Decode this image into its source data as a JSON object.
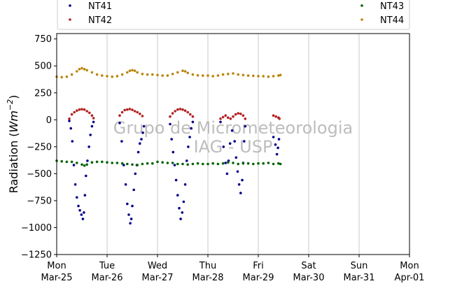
{
  "chart_data": {
    "type": "scatter",
    "title": "",
    "xlabel": "",
    "ylabel": "Radiation (Wm^-2)",
    "ylabel_parts": {
      "base": "Radiation (",
      "var": "Wm",
      "exp": "−2",
      "close": ")"
    },
    "ylim": [
      -1250,
      800
    ],
    "yticks": [
      -1250,
      -1000,
      -750,
      -500,
      -250,
      0,
      250,
      500,
      750
    ],
    "ytick_labels": [
      "−1250",
      "−1000",
      "−750",
      "−500",
      "−250",
      "0",
      "250",
      "500",
      "750"
    ],
    "xlim_days": [
      0,
      7
    ],
    "xticks": [
      {
        "day": 0,
        "weekday": "Mon",
        "date": "Mar-25"
      },
      {
        "day": 1,
        "weekday": "Tue",
        "date": "Mar-26"
      },
      {
        "day": 2,
        "weekday": "Wed",
        "date": "Mar-27"
      },
      {
        "day": 3,
        "weekday": "Thu",
        "date": "Mar-28"
      },
      {
        "day": 4,
        "weekday": "Fri",
        "date": "Mar-29"
      },
      {
        "day": 5,
        "weekday": "Sat",
        "date": "Mar-30"
      },
      {
        "day": 6,
        "weekday": "Sun",
        "date": "Mar-31"
      },
      {
        "day": 7,
        "weekday": "Mon",
        "date": "Apr-01"
      }
    ],
    "grid": {
      "vertical": true,
      "horizontal": false
    },
    "legend_placement": "top (above plot, 2 columns)",
    "watermark": [
      "Grupo de Micrometeorologia",
      "IAG - USP"
    ],
    "series": [
      {
        "name": "NT41",
        "color": "#00008b",
        "points": [
          [
            0.25,
            -10
          ],
          [
            0.28,
            -80
          ],
          [
            0.31,
            -200
          ],
          [
            0.34,
            -420
          ],
          [
            0.37,
            -600
          ],
          [
            0.4,
            -720
          ],
          [
            0.43,
            -800
          ],
          [
            0.46,
            -840
          ],
          [
            0.49,
            -880
          ],
          [
            0.52,
            -920
          ],
          [
            0.54,
            -860
          ],
          [
            0.56,
            -700
          ],
          [
            0.58,
            -520
          ],
          [
            0.61,
            -380
          ],
          [
            0.64,
            -250
          ],
          [
            0.67,
            -140
          ],
          [
            0.7,
            -60
          ],
          [
            0.73,
            -20
          ],
          [
            1.25,
            -30
          ],
          [
            1.29,
            -200
          ],
          [
            1.33,
            -420
          ],
          [
            1.37,
            -600
          ],
          [
            1.4,
            -780
          ],
          [
            1.43,
            -880
          ],
          [
            1.46,
            -960
          ],
          [
            1.48,
            -920
          ],
          [
            1.5,
            -800
          ],
          [
            1.53,
            -650
          ],
          [
            1.56,
            -500
          ],
          [
            1.59,
            -420
          ],
          [
            1.62,
            -300
          ],
          [
            1.65,
            -220
          ],
          [
            1.68,
            -180
          ],
          [
            1.71,
            -120
          ],
          [
            1.73,
            -60
          ],
          [
            2.25,
            -40
          ],
          [
            2.28,
            -180
          ],
          [
            2.31,
            -300
          ],
          [
            2.34,
            -420
          ],
          [
            2.37,
            -560
          ],
          [
            2.4,
            -700
          ],
          [
            2.43,
            -820
          ],
          [
            2.46,
            -920
          ],
          [
            2.49,
            -860
          ],
          [
            2.52,
            -760
          ],
          [
            2.55,
            -600
          ],
          [
            2.58,
            -380
          ],
          [
            2.61,
            -250
          ],
          [
            2.64,
            -160
          ],
          [
            2.67,
            -80
          ],
          [
            2.7,
            -20
          ],
          [
            3.25,
            -20
          ],
          [
            3.31,
            -250
          ],
          [
            3.35,
            -400
          ],
          [
            3.38,
            -500
          ],
          [
            3.41,
            -380
          ],
          [
            3.44,
            -220
          ],
          [
            3.48,
            -100
          ],
          [
            3.53,
            -200
          ],
          [
            3.56,
            -350
          ],
          [
            3.59,
            -480
          ],
          [
            3.62,
            -600
          ],
          [
            3.65,
            -680
          ],
          [
            3.68,
            -560
          ],
          [
            3.7,
            -400
          ],
          [
            3.72,
            -200
          ],
          [
            3.74,
            -60
          ],
          [
            4.3,
            -160
          ],
          [
            4.34,
            -230
          ],
          [
            4.37,
            -320
          ],
          [
            4.39,
            -260
          ],
          [
            4.41,
            -180
          ]
        ]
      },
      {
        "name": "NT42",
        "color": "#b22222",
        "points": [
          [
            0.25,
            10
          ],
          [
            0.3,
            50
          ],
          [
            0.35,
            70
          ],
          [
            0.4,
            85
          ],
          [
            0.45,
            95
          ],
          [
            0.5,
            98
          ],
          [
            0.55,
            95
          ],
          [
            0.6,
            80
          ],
          [
            0.65,
            65
          ],
          [
            0.7,
            40
          ],
          [
            0.73,
            15
          ],
          [
            1.25,
            40
          ],
          [
            1.3,
            70
          ],
          [
            1.35,
            90
          ],
          [
            1.4,
            95
          ],
          [
            1.45,
            100
          ],
          [
            1.5,
            92
          ],
          [
            1.55,
            80
          ],
          [
            1.6,
            70
          ],
          [
            1.65,
            55
          ],
          [
            1.7,
            35
          ],
          [
            2.25,
            30
          ],
          [
            2.3,
            60
          ],
          [
            2.35,
            80
          ],
          [
            2.4,
            95
          ],
          [
            2.45,
            100
          ],
          [
            2.5,
            95
          ],
          [
            2.55,
            85
          ],
          [
            2.6,
            70
          ],
          [
            2.65,
            50
          ],
          [
            2.7,
            30
          ],
          [
            3.25,
            10
          ],
          [
            3.3,
            25
          ],
          [
            3.35,
            40
          ],
          [
            3.4,
            20
          ],
          [
            3.45,
            10
          ],
          [
            3.5,
            30
          ],
          [
            3.55,
            50
          ],
          [
            3.6,
            60
          ],
          [
            3.65,
            55
          ],
          [
            3.7,
            40
          ],
          [
            3.74,
            10
          ],
          [
            4.3,
            40
          ],
          [
            4.35,
            30
          ],
          [
            4.4,
            20
          ],
          [
            4.42,
            10
          ]
        ]
      },
      {
        "name": "NT43",
        "color": "#006400",
        "points": [
          [
            0.0,
            -380
          ],
          [
            0.1,
            -385
          ],
          [
            0.2,
            -390
          ],
          [
            0.3,
            -390
          ],
          [
            0.4,
            -400
          ],
          [
            0.5,
            -415
          ],
          [
            0.55,
            -425
          ],
          [
            0.6,
            -415
          ],
          [
            0.7,
            -395
          ],
          [
            0.8,
            -390
          ],
          [
            0.9,
            -390
          ],
          [
            1.0,
            -395
          ],
          [
            1.1,
            -400
          ],
          [
            1.2,
            -400
          ],
          [
            1.3,
            -405
          ],
          [
            1.4,
            -410
          ],
          [
            1.5,
            -415
          ],
          [
            1.6,
            -420
          ],
          [
            1.7,
            -410
          ],
          [
            1.8,
            -405
          ],
          [
            1.9,
            -405
          ],
          [
            2.0,
            -390
          ],
          [
            2.1,
            -395
          ],
          [
            2.2,
            -400
          ],
          [
            2.3,
            -400
          ],
          [
            2.4,
            -410
          ],
          [
            2.5,
            -410
          ],
          [
            2.6,
            -415
          ],
          [
            2.7,
            -410
          ],
          [
            2.8,
            -405
          ],
          [
            2.9,
            -410
          ],
          [
            3.0,
            -410
          ],
          [
            3.1,
            -405
          ],
          [
            3.2,
            -410
          ],
          [
            3.3,
            -405
          ],
          [
            3.4,
            -395
          ],
          [
            3.5,
            -400
          ],
          [
            3.6,
            -410
          ],
          [
            3.7,
            -405
          ],
          [
            3.8,
            -405
          ],
          [
            3.9,
            -410
          ],
          [
            4.0,
            -405
          ],
          [
            4.1,
            -405
          ],
          [
            4.2,
            -400
          ],
          [
            4.3,
            -410
          ],
          [
            4.4,
            -405
          ],
          [
            4.44,
            -410
          ]
        ]
      },
      {
        "name": "NT44",
        "color": "#b8860b",
        "points": [
          [
            0.0,
            400
          ],
          [
            0.1,
            395
          ],
          [
            0.2,
            400
          ],
          [
            0.3,
            420
          ],
          [
            0.4,
            450
          ],
          [
            0.45,
            470
          ],
          [
            0.5,
            478
          ],
          [
            0.55,
            470
          ],
          [
            0.6,
            460
          ],
          [
            0.7,
            440
          ],
          [
            0.8,
            420
          ],
          [
            0.9,
            410
          ],
          [
            1.0,
            405
          ],
          [
            1.1,
            400
          ],
          [
            1.2,
            405
          ],
          [
            1.3,
            420
          ],
          [
            1.4,
            440
          ],
          [
            1.45,
            455
          ],
          [
            1.5,
            460
          ],
          [
            1.55,
            455
          ],
          [
            1.6,
            440
          ],
          [
            1.7,
            425
          ],
          [
            1.8,
            420
          ],
          [
            1.9,
            420
          ],
          [
            2.0,
            415
          ],
          [
            2.1,
            410
          ],
          [
            2.2,
            410
          ],
          [
            2.3,
            425
          ],
          [
            2.4,
            440
          ],
          [
            2.5,
            455
          ],
          [
            2.55,
            450
          ],
          [
            2.6,
            435
          ],
          [
            2.7,
            420
          ],
          [
            2.8,
            412
          ],
          [
            2.9,
            410
          ],
          [
            3.0,
            410
          ],
          [
            3.1,
            405
          ],
          [
            3.2,
            410
          ],
          [
            3.3,
            420
          ],
          [
            3.4,
            425
          ],
          [
            3.5,
            430
          ],
          [
            3.6,
            420
          ],
          [
            3.7,
            415
          ],
          [
            3.8,
            410
          ],
          [
            3.9,
            408
          ],
          [
            4.0,
            405
          ],
          [
            4.1,
            405
          ],
          [
            4.2,
            400
          ],
          [
            4.3,
            405
          ],
          [
            4.4,
            410
          ],
          [
            4.44,
            415
          ]
        ]
      }
    ]
  }
}
